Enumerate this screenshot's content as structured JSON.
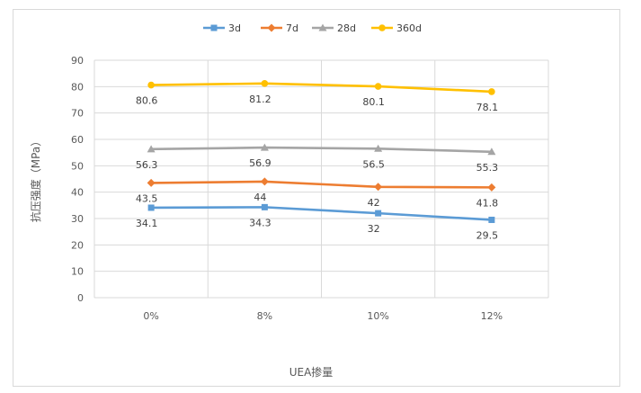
{
  "chart_data": {
    "type": "line",
    "title": "",
    "xlabel": "UEA掺量",
    "ylabel": "抗压强度（MPa）",
    "categories": [
      "0%",
      "8%",
      "10%",
      "12%"
    ],
    "ylim": [
      0,
      90
    ],
    "yticks": [
      0,
      10,
      20,
      30,
      40,
      50,
      60,
      70,
      80,
      90
    ],
    "grid": true,
    "legend_position": "top",
    "series": [
      {
        "name": "3d",
        "values": [
          34.1,
          34.3,
          32,
          29.5
        ],
        "color": "#5b9bd5",
        "marker": "square"
      },
      {
        "name": "7d",
        "values": [
          43.5,
          44,
          42,
          41.8
        ],
        "color": "#ed7d31",
        "marker": "diamond"
      },
      {
        "name": "28d",
        "values": [
          56.3,
          56.9,
          56.5,
          55.3
        ],
        "color": "#a5a5a5",
        "marker": "triangle"
      },
      {
        "name": "360d",
        "values": [
          80.6,
          81.2,
          80.1,
          78.1
        ],
        "color": "#ffc000",
        "marker": "circle"
      }
    ]
  }
}
